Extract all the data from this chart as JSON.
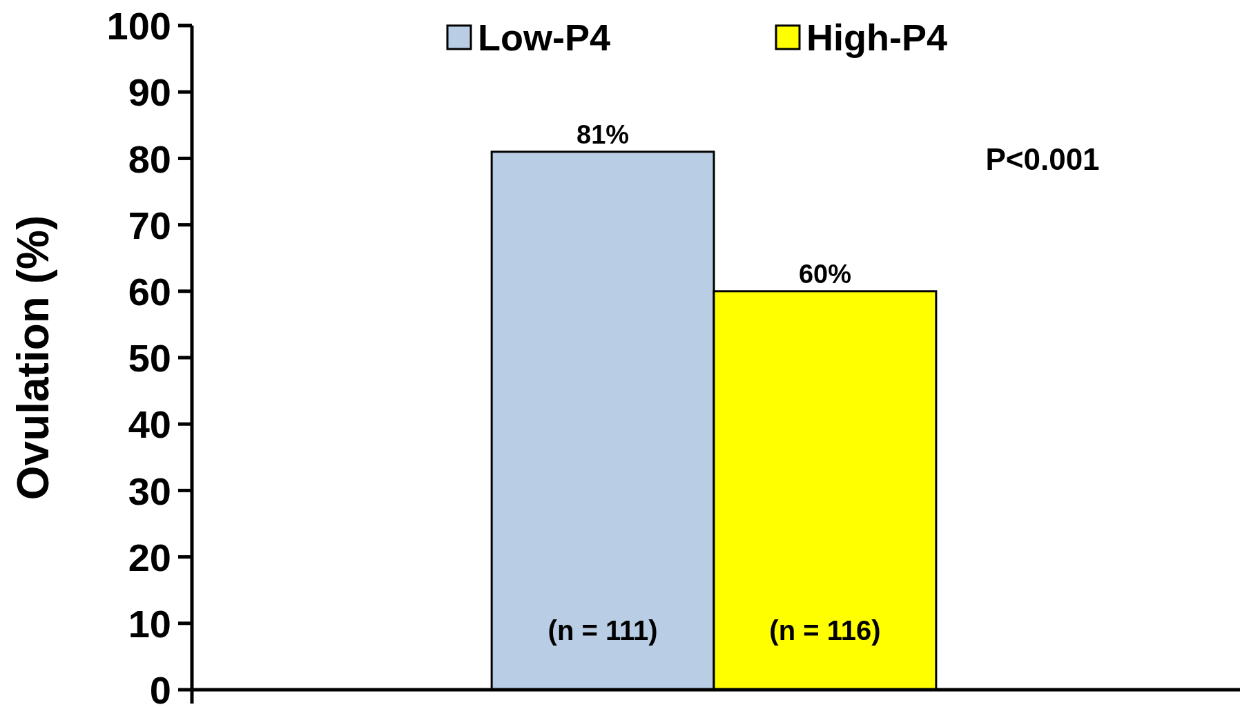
{
  "chart_data": {
    "type": "bar",
    "ylabel": "Ovulation (%)",
    "categories": [
      null
    ],
    "series": [
      {
        "name": "Low-P4",
        "color": "#b9cde5",
        "values": [
          81
        ],
        "value_labels": [
          "81%"
        ]
      },
      {
        "name": "High-P4",
        "color": "#ffff00",
        "values": [
          60
        ],
        "value_labels": [
          "60%"
        ]
      }
    ],
    "ylim": [
      0,
      100
    ],
    "yticks": [
      0,
      10,
      20,
      30,
      40,
      50,
      60,
      70,
      80,
      90,
      100
    ],
    "grid": false,
    "legend": "top",
    "annotations": [
      "(n = 111)",
      "(n = 116)",
      "P<0.001"
    ]
  }
}
